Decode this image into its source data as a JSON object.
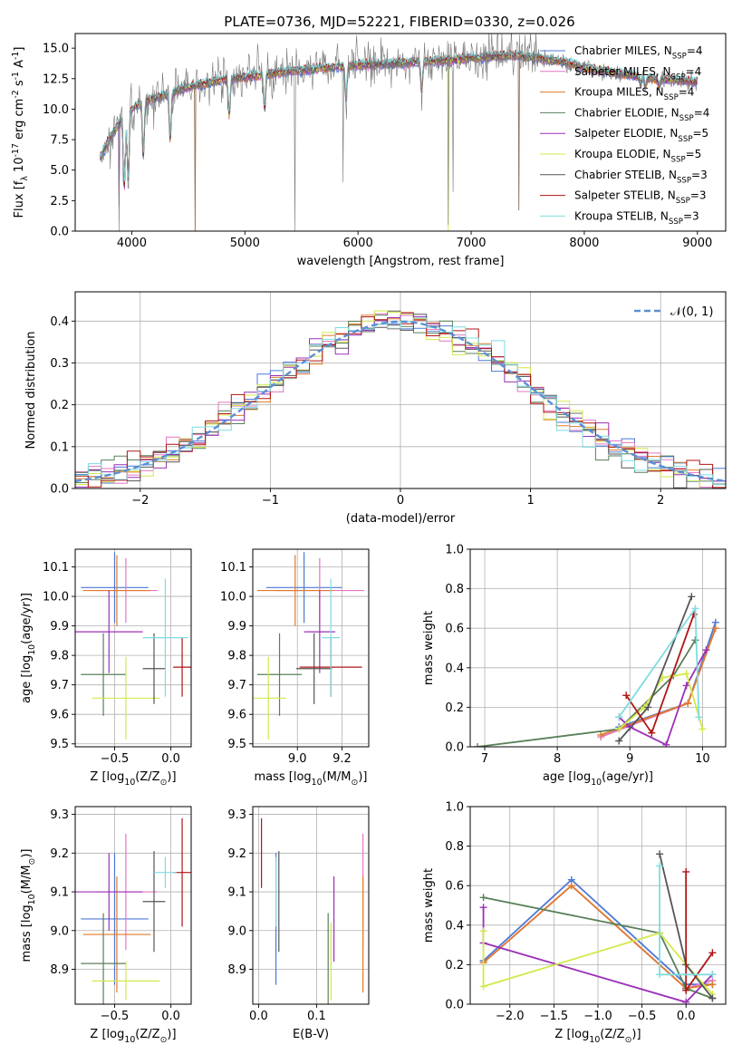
{
  "figure": {
    "title": "PLATE=0736, MJD=52221, FIBERID=0330, z=0.026"
  },
  "colors": {
    "Chabrier MILES": "#4c78d8",
    "Salpeter MILES": "#e377c2",
    "Kroupa MILES": "#e07b2a",
    "Chabrier ELODIE": "#5a7f5a",
    "Salpeter ELODIE": "#9b30b8",
    "Kroupa ELODIE": "#d4e84a",
    "Chabrier STELIB": "#555555",
    "Salpeter STELIB": "#b01515",
    "Kroupa STELIB": "#7fdce0"
  },
  "chart_data": [
    {
      "id": "spectrum",
      "type": "line",
      "title": "PLATE=0736, MJD=52221, FIBERID=0330, z=0.026",
      "xlabel": "wavelength [Angstrom, rest frame]",
      "ylabel": "Flux [f$_\\lambda$ 10$^{-17}$ erg cm$^{-2}$ s$^{-1}$ A$^{-1}$]",
      "xlim": [
        3500,
        9250
      ],
      "ylim": [
        0,
        16.2
      ],
      "xticks": [
        4000,
        5000,
        6000,
        7000,
        8000,
        9000
      ],
      "yticks": [
        0.0,
        2.5,
        5.0,
        7.5,
        10.0,
        12.5,
        15.0
      ],
      "grid": false,
      "legend_position": "right",
      "continuum": {
        "x": [
          3720,
          3800,
          3900,
          4000,
          4100,
          4300,
          4500,
          4800,
          5000,
          5300,
          5600,
          6000,
          6400,
          6800,
          7000,
          7200,
          7400,
          7600,
          7800,
          8000,
          8300,
          8600,
          8800,
          9000
        ],
        "y": [
          6.0,
          7.5,
          9.0,
          10.0,
          10.6,
          11.2,
          11.8,
          12.4,
          12.6,
          13.0,
          13.3,
          13.6,
          13.8,
          14.0,
          14.2,
          14.3,
          14.4,
          14.2,
          13.9,
          13.4,
          12.9,
          12.5,
          12.4,
          12.2
        ]
      },
      "absorption_features": [
        {
          "x": 3934,
          "y": 3.5
        },
        {
          "x": 3969,
          "y": 4.0
        },
        {
          "x": 4102,
          "y": 6.0
        },
        {
          "x": 4340,
          "y": 7.5
        },
        {
          "x": 4861,
          "y": 9.5
        },
        {
          "x": 5175,
          "y": 10.0
        },
        {
          "x": 5893,
          "y": 11.0
        },
        {
          "x": 6563,
          "y": 11.5
        },
        {
          "x": 8498,
          "y": 12.0
        },
        {
          "x": 8542,
          "y": 11.8
        },
        {
          "x": 8662,
          "y": 11.9
        }
      ],
      "spikes": [
        {
          "x": 3890,
          "y": 0.0
        },
        {
          "x": 4560,
          "y": 0.0
        },
        {
          "x": 5440,
          "y": 0.0
        },
        {
          "x": 5870,
          "y": 4.0
        },
        {
          "x": 6800,
          "y": 0.5
        },
        {
          "x": 6840,
          "y": 3.2
        },
        {
          "x": 7420,
          "y": 1.7
        }
      ],
      "series": [
        {
          "name": "Chabrier MILES, N$_{SSP}$=4",
          "model": "Chabrier MILES"
        },
        {
          "name": "Salpeter MILES, N$_{SSP}$=4",
          "model": "Salpeter MILES"
        },
        {
          "name": "Kroupa MILES, N$_{SSP}$=4",
          "model": "Kroupa MILES"
        },
        {
          "name": "Chabrier ELODIE, N$_{SSP}$=4",
          "model": "Chabrier ELODIE"
        },
        {
          "name": "Salpeter ELODIE, N$_{SSP}$=5",
          "model": "Salpeter ELODIE"
        },
        {
          "name": "Kroupa ELODIE, N$_{SSP}$=5",
          "model": "Kroupa ELODIE"
        },
        {
          "name": "Chabrier STELIB, N$_{SSP}$=3",
          "model": "Chabrier STELIB"
        },
        {
          "name": "Salpeter STELIB, N$_{SSP}$=3",
          "model": "Salpeter STELIB"
        },
        {
          "name": "Kroupa STELIB, N$_{SSP}$=3",
          "model": "Kroupa STELIB"
        }
      ]
    },
    {
      "id": "residuals",
      "type": "histogram",
      "xlabel": "(data-model)/error",
      "ylabel": "Normed distribution",
      "xlim": [
        -2.5,
        2.5
      ],
      "ylim": [
        0,
        0.47
      ],
      "xticks": [
        -2,
        -1,
        0,
        1,
        2
      ],
      "yticks": [
        0.0,
        0.1,
        0.2,
        0.3,
        0.4
      ],
      "grid": true,
      "bin_edges_start": -2.5,
      "bin_width": 0.1,
      "bin_count": 50,
      "reference_curve": {
        "label": "$\\mathcal{N}(0, 1)$",
        "color": "#5b8fd6"
      },
      "legend_position": "upper right"
    },
    {
      "id": "age_vs_Z",
      "type": "errorbar",
      "xlabel": "Z [log$_{10}$(Z/Z$_\\odot$)]",
      "ylabel": "age  [log$_{10}$(age/yr)]",
      "xlim": [
        -0.85,
        0.18
      ],
      "ylim": [
        9.49,
        10.16
      ],
      "xticks": [
        -0.5,
        0.0
      ],
      "yticks": [
        9.5,
        9.6,
        9.7,
        9.8,
        9.9,
        10.0,
        10.1
      ],
      "grid": true,
      "points": [
        {
          "model": "Chabrier MILES",
          "x": -0.5,
          "xerr": 0.3,
          "y": 10.03,
          "yerr": 0.12
        },
        {
          "model": "Salpeter MILES",
          "x": -0.4,
          "xerr": 0.28,
          "y": 10.02,
          "yerr": 0.11
        },
        {
          "model": "Kroupa MILES",
          "x": -0.48,
          "xerr": 0.3,
          "y": 10.02,
          "yerr": 0.12
        },
        {
          "model": "Chabrier ELODIE",
          "x": -0.6,
          "xerr": 0.2,
          "y": 9.735,
          "yerr": 0.14
        },
        {
          "model": "Salpeter ELODIE",
          "x": -0.55,
          "xerr": 0.3,
          "y": 9.88,
          "yerr": 0.14
        },
        {
          "model": "Kroupa ELODIE",
          "x": -0.4,
          "xerr": 0.3,
          "y": 9.655,
          "yerr": 0.14
        },
        {
          "model": "Chabrier STELIB",
          "x": -0.15,
          "xerr": 0.1,
          "y": 9.755,
          "yerr": 0.12
        },
        {
          "model": "Salpeter STELIB",
          "x": 0.1,
          "xerr": 0.08,
          "y": 9.76,
          "yerr": 0.1
        },
        {
          "model": "Kroupa STELIB",
          "x": -0.05,
          "xerr": 0.2,
          "y": 9.86,
          "yerr": 0.2
        }
      ]
    },
    {
      "id": "age_vs_mass",
      "type": "errorbar",
      "xlabel": "mass [log$_{10}$(M/M$_\\odot$)]",
      "ylabel": "",
      "xlim": [
        8.8,
        9.32
      ],
      "ylim": [
        9.49,
        10.16
      ],
      "xticks": [
        9.0,
        9.2
      ],
      "yticks": [
        9.5,
        9.6,
        9.7,
        9.8,
        9.9,
        10.0,
        10.1
      ],
      "grid": true,
      "points": [
        {
          "model": "Chabrier MILES",
          "x": 9.03,
          "xerr": 0.17,
          "y": 10.03,
          "yerr": 0.12
        },
        {
          "model": "Salpeter MILES",
          "x": 9.1,
          "xerr": 0.2,
          "y": 10.02,
          "yerr": 0.11
        },
        {
          "model": "Kroupa MILES",
          "x": 8.99,
          "xerr": 0.17,
          "y": 10.02,
          "yerr": 0.12
        },
        {
          "model": "Chabrier ELODIE",
          "x": 8.92,
          "xerr": 0.1,
          "y": 9.735,
          "yerr": 0.14
        },
        {
          "model": "Salpeter ELODIE",
          "x": 9.1,
          "xerr": 0.07,
          "y": 9.88,
          "yerr": 0.14
        },
        {
          "model": "Kroupa ELODIE",
          "x": 8.87,
          "xerr": 0.08,
          "y": 9.655,
          "yerr": 0.14
        },
        {
          "model": "Chabrier STELIB",
          "x": 9.075,
          "xerr": 0.08,
          "y": 9.755,
          "yerr": 0.12
        },
        {
          "model": "Salpeter STELIB",
          "x": 9.15,
          "xerr": 0.14,
          "y": 9.76,
          "yerr": 0.1
        },
        {
          "model": "Kroupa STELIB",
          "x": 9.15,
          "xerr": 0.04,
          "y": 9.86,
          "yerr": 0.2
        }
      ]
    },
    {
      "id": "mass_weight_vs_age",
      "type": "line",
      "xlabel": "age  [log$_{10}$(age/yr)]",
      "ylabel": "mass weight",
      "xlim": [
        6.8,
        10.32
      ],
      "ylim": [
        0,
        1.0
      ],
      "xticks": [
        7,
        8,
        9,
        10
      ],
      "yticks": [
        0.0,
        0.2,
        0.4,
        0.6,
        0.8,
        1.0
      ],
      "grid": true,
      "series": [
        {
          "model": "Chabrier MILES",
          "points": [
            [
              8.85,
              0.1
            ],
            [
              9.8,
              0.22
            ],
            [
              10.18,
              0.63
            ]
          ]
        },
        {
          "model": "Salpeter MILES",
          "points": [
            [
              8.6,
              0.05
            ],
            [
              9.8,
              0.22
            ],
            [
              10.18,
              0.6
            ]
          ]
        },
        {
          "model": "Kroupa MILES",
          "points": [
            [
              8.6,
              0.06
            ],
            [
              9.8,
              0.22
            ],
            [
              10.18,
              0.6
            ]
          ]
        },
        {
          "model": "Chabrier ELODIE",
          "points": [
            [
              6.9,
              0.0
            ],
            [
              8.85,
              0.09
            ],
            [
              9.6,
              0.36
            ],
            [
              9.9,
              0.54
            ]
          ]
        },
        {
          "model": "Salpeter ELODIE",
          "points": [
            [
              8.85,
              0.15
            ],
            [
              9.0,
              0.1
            ],
            [
              9.5,
              0.01
            ],
            [
              9.78,
              0.31
            ],
            [
              10.05,
              0.49
            ]
          ]
        },
        {
          "model": "Kroupa ELODIE",
          "points": [
            [
              8.85,
              0.09
            ],
            [
              9.2,
              0.2
            ],
            [
              9.45,
              0.35
            ],
            [
              9.78,
              0.37
            ],
            [
              10.0,
              0.09
            ]
          ]
        },
        {
          "model": "Chabrier STELIB",
          "points": [
            [
              8.85,
              0.03
            ],
            [
              9.25,
              0.2
            ],
            [
              9.85,
              0.76
            ]
          ]
        },
        {
          "model": "Salpeter STELIB",
          "points": [
            [
              8.95,
              0.26
            ],
            [
              9.3,
              0.07
            ],
            [
              9.88,
              0.67
            ]
          ]
        },
        {
          "model": "Kroupa STELIB",
          "points": [
            [
              8.85,
              0.15
            ],
            [
              9.9,
              0.7
            ],
            [
              9.95,
              0.15
            ]
          ]
        }
      ]
    },
    {
      "id": "mass_vs_Z",
      "type": "errorbar",
      "xlabel": "Z [log$_{10}$(Z/Z$_\\odot$)]",
      "ylabel": "mass [log$_{10}$(M/M$_\\odot$)]",
      "xlim": [
        -0.85,
        0.18
      ],
      "ylim": [
        8.81,
        9.32
      ],
      "xticks": [
        -0.5,
        0.0
      ],
      "yticks": [
        8.9,
        9.0,
        9.1,
        9.2,
        9.3
      ],
      "grid": true,
      "points": [
        {
          "model": "Chabrier MILES",
          "x": -0.5,
          "xerr": 0.3,
          "y": 9.03,
          "yerr": 0.17
        },
        {
          "model": "Salpeter MILES",
          "x": -0.4,
          "xerr": 0.28,
          "y": 9.1,
          "yerr": 0.15
        },
        {
          "model": "Kroupa MILES",
          "x": -0.48,
          "xerr": 0.3,
          "y": 8.99,
          "yerr": 0.15
        },
        {
          "model": "Chabrier ELODIE",
          "x": -0.6,
          "xerr": 0.2,
          "y": 8.915,
          "yerr": 0.13
        },
        {
          "model": "Salpeter ELODIE",
          "x": -0.55,
          "xerr": 0.3,
          "y": 9.1,
          "yerr": 0.1
        },
        {
          "model": "Kroupa ELODIE",
          "x": -0.4,
          "xerr": 0.3,
          "y": 8.87,
          "yerr": 0.05
        },
        {
          "model": "Chabrier STELIB",
          "x": -0.15,
          "xerr": 0.1,
          "y": 9.075,
          "yerr": 0.13
        },
        {
          "model": "Salpeter STELIB",
          "x": 0.1,
          "xerr": 0.08,
          "y": 9.15,
          "yerr": 0.14
        },
        {
          "model": "Kroupa STELIB",
          "x": -0.05,
          "xerr": 0.1,
          "y": 9.15,
          "yerr": 0.04
        }
      ]
    },
    {
      "id": "mass_vs_ebv",
      "type": "errorbar",
      "xlabel": "E(B-V)",
      "ylabel": "",
      "xlim": [
        -0.01,
        0.19
      ],
      "ylim": [
        8.81,
        9.32
      ],
      "xticks": [
        0.0,
        0.1
      ],
      "yticks": [
        8.9,
        9.0,
        9.1,
        9.2,
        9.3
      ],
      "grid": true,
      "points": [
        {
          "model": "Chabrier MILES",
          "x": 0.03,
          "y": 9.03,
          "yerr": 0.17
        },
        {
          "model": "Salpeter MILES",
          "x": 0.18,
          "y": 9.1,
          "yerr": 0.15
        },
        {
          "model": "Kroupa MILES",
          "x": 0.18,
          "y": 8.99,
          "yerr": 0.15
        },
        {
          "model": "Chabrier ELODIE",
          "x": 0.12,
          "y": 8.915,
          "yerr": 0.13
        },
        {
          "model": "Salpeter ELODIE",
          "x": 0.13,
          "y": 9.03,
          "yerr": 0.11
        },
        {
          "model": "Kroupa ELODIE",
          "x": 0.125,
          "y": 8.92,
          "yerr": 0.1
        },
        {
          "model": "Chabrier STELIB",
          "x": 0.035,
          "y": 9.075,
          "yerr": 0.13
        },
        {
          "model": "Salpeter STELIB",
          "x": 0.005,
          "y": 9.2,
          "yerr": 0.09
        },
        {
          "model": "Kroupa STELIB",
          "x": 0.03,
          "y": 9.1,
          "yerr": 0.09
        }
      ]
    },
    {
      "id": "mass_weight_vs_Z",
      "type": "line",
      "xlabel": "Z [log$_{10}$(Z/Z$_\\odot$)]",
      "ylabel": "mass weight",
      "xlim": [
        -2.45,
        0.45
      ],
      "ylim": [
        0,
        1.0
      ],
      "xticks": [
        -2.0,
        -1.5,
        -1.0,
        -0.5,
        0.0
      ],
      "yticks": [
        0.0,
        0.2,
        0.4,
        0.6,
        0.8,
        1.0
      ],
      "grid": true,
      "series": [
        {
          "model": "Chabrier MILES",
          "points": [
            [
              -2.3,
              0.22
            ],
            [
              -1.3,
              0.63
            ],
            [
              0.0,
              0.1
            ],
            [
              0.3,
              0.1
            ]
          ]
        },
        {
          "model": "Salpeter MILES",
          "points": [
            [
              -2.3,
              0.21
            ],
            [
              -1.3,
              0.6
            ],
            [
              0.0,
              0.08
            ],
            [
              0.3,
              0.12
            ]
          ]
        },
        {
          "model": "Kroupa MILES",
          "points": [
            [
              -2.3,
              0.21
            ],
            [
              -1.3,
              0.6
            ],
            [
              0.0,
              0.08
            ],
            [
              0.3,
              0.1
            ]
          ]
        },
        {
          "model": "Chabrier ELODIE",
          "points": [
            [
              -2.3,
              0.54
            ],
            [
              -0.3,
              0.36
            ],
            [
              0.0,
              0.08
            ],
            [
              0.3,
              0.03
            ]
          ]
        },
        {
          "model": "Salpeter ELODIE",
          "points": [
            [
              -2.3,
              0.49
            ],
            [
              -2.3,
              0.31
            ],
            [
              0.0,
              0.01
            ],
            [
              0.3,
              0.15
            ]
          ]
        },
        {
          "model": "Kroupa ELODIE",
          "points": [
            [
              -2.3,
              0.37
            ],
            [
              -2.3,
              0.09
            ],
            [
              -0.3,
              0.36
            ],
            [
              0.0,
              0.2
            ],
            [
              0.3,
              0.05
            ]
          ]
        },
        {
          "model": "Chabrier STELIB",
          "points": [
            [
              -0.3,
              0.76
            ],
            [
              0.0,
              0.2
            ],
            [
              0.3,
              0.03
            ]
          ]
        },
        {
          "model": "Salpeter STELIB",
          "points": [
            [
              0.0,
              0.67
            ],
            [
              0.0,
              0.07
            ],
            [
              0.3,
              0.26
            ]
          ]
        },
        {
          "model": "Kroupa STELIB",
          "points": [
            [
              -0.3,
              0.7
            ],
            [
              -0.3,
              0.15
            ],
            [
              0.3,
              0.15
            ]
          ]
        }
      ]
    }
  ]
}
